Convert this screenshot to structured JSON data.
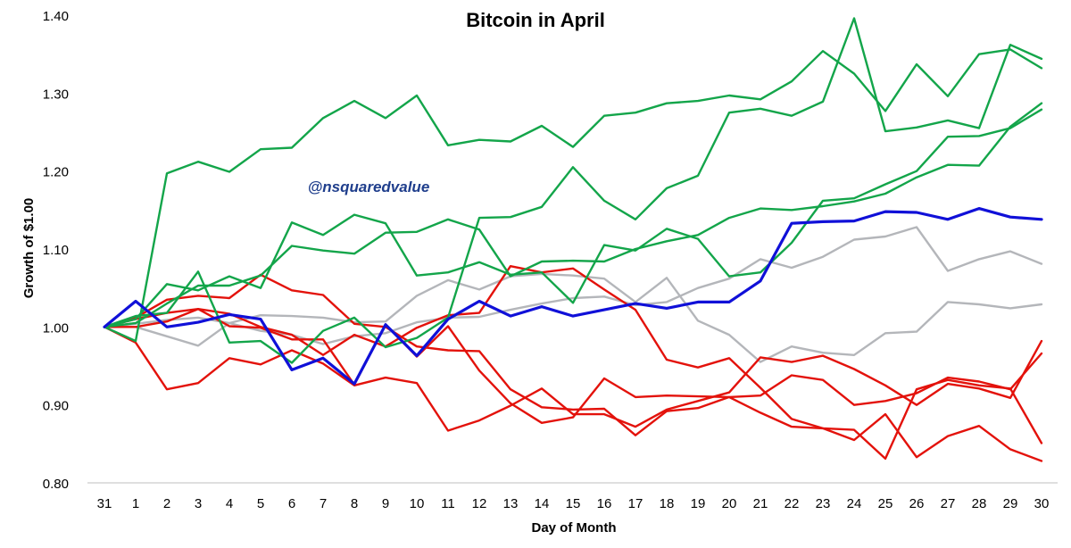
{
  "chart_data": {
    "type": "line",
    "title": "Bitcoin in April",
    "watermark": "@nsquaredvalue",
    "xlabel": "Day of Month",
    "ylabel": "Growth of $1.00",
    "x": [
      "31",
      "1",
      "2",
      "3",
      "4",
      "5",
      "6",
      "7",
      "8",
      "9",
      "10",
      "11",
      "12",
      "13",
      "14",
      "15",
      "16",
      "17",
      "18",
      "19",
      "20",
      "21",
      "22",
      "23",
      "24",
      "25",
      "26",
      "27",
      "28",
      "29",
      "30"
    ],
    "ylim": [
      0.8,
      1.4
    ],
    "yticks": [
      "0.80",
      "0.90",
      "1.00",
      "1.10",
      "1.20",
      "1.30",
      "1.40"
    ],
    "grid": false,
    "legend": "none",
    "colors": {
      "up": "#13a54a",
      "down": "#e3120b",
      "flat": "#b4b6ba",
      "current": "#1010d8"
    },
    "series": [
      {
        "group": "up",
        "values": [
          1.0,
          0.982,
          1.197,
          1.212,
          1.199,
          1.228,
          1.23,
          1.268,
          1.29,
          1.268,
          1.297,
          1.233,
          1.24,
          1.238,
          1.258,
          1.231,
          1.271,
          1.275,
          1.287,
          1.29,
          1.297,
          1.292,
          1.315,
          1.354,
          1.325,
          1.277,
          1.337,
          1.296,
          1.35,
          1.356,
          1.332
        ]
      },
      {
        "group": "up",
        "values": [
          1.0,
          1.01,
          1.055,
          1.047,
          1.065,
          1.05,
          1.134,
          1.118,
          1.144,
          1.133,
          1.066,
          1.07,
          1.083,
          1.067,
          1.07,
          1.031,
          1.105,
          1.098,
          1.126,
          1.113,
          1.065,
          1.07,
          1.108,
          1.162,
          1.165,
          1.183,
          1.2,
          1.244,
          1.245,
          1.255,
          1.279
        ]
      },
      {
        "group": "up",
        "values": [
          1.0,
          1.014,
          1.018,
          1.071,
          0.98,
          0.982,
          0.954,
          0.995,
          1.012,
          0.974,
          0.986,
          1.012,
          1.14,
          1.141,
          1.154,
          1.205,
          1.162,
          1.138,
          1.178,
          1.194,
          1.275,
          1.28,
          1.271,
          1.289,
          1.396,
          1.251,
          1.256,
          1.265,
          1.255,
          1.362,
          1.344
        ]
      },
      {
        "group": "up",
        "values": [
          1.0,
          1.005,
          1.03,
          1.053,
          1.053,
          1.066,
          1.104,
          1.098,
          1.094,
          1.121,
          1.122,
          1.138,
          1.125,
          1.065,
          1.084,
          1.085,
          1.084,
          1.1,
          1.11,
          1.118,
          1.14,
          1.152,
          1.15,
          1.155,
          1.161,
          1.171,
          1.192,
          1.208,
          1.207,
          1.257,
          1.287
        ]
      },
      {
        "group": "flat",
        "values": [
          1.0,
          1.0,
          0.988,
          0.976,
          1.005,
          1.015,
          1.014,
          1.012,
          1.006,
          1.007,
          1.04,
          1.06,
          1.048,
          1.065,
          1.068,
          1.066,
          1.062,
          1.032,
          1.063,
          1.008,
          0.99,
          0.955,
          0.975,
          0.967,
          0.964,
          0.992,
          0.994,
          1.032,
          1.029,
          1.024,
          1.029
        ]
      },
      {
        "group": "flat",
        "values": [
          1.0,
          1.004,
          1.009,
          1.012,
          1.005,
          0.995,
          0.99,
          0.978,
          0.988,
          0.992,
          1.006,
          1.012,
          1.013,
          1.022,
          1.03,
          1.037,
          1.039,
          1.028,
          1.032,
          1.05,
          1.062,
          1.087,
          1.076,
          1.09,
          1.112,
          1.116,
          1.128,
          1.072,
          1.087,
          1.097,
          1.081
        ]
      },
      {
        "group": "down",
        "values": [
          1.0,
          0.98,
          0.92,
          0.928,
          0.96,
          0.952,
          0.97,
          0.953,
          0.925,
          0.935,
          0.928,
          0.867,
          0.88,
          0.899,
          0.921,
          0.888,
          0.888,
          0.872,
          0.894,
          0.905,
          0.916,
          0.961,
          0.955,
          0.963,
          0.946,
          0.925,
          0.9,
          0.927,
          0.921,
          0.909,
          0.982
        ]
      },
      {
        "group": "down",
        "values": [
          1.0,
          1.012,
          1.035,
          1.04,
          1.037,
          1.067,
          1.047,
          1.041,
          1.004,
          1.0,
          0.975,
          0.97,
          0.969,
          0.92,
          0.897,
          0.894,
          0.895,
          0.861,
          0.892,
          0.896,
          0.91,
          0.912,
          0.938,
          0.932,
          0.9,
          0.905,
          0.915,
          0.935,
          0.93,
          0.92,
          0.966
        ]
      },
      {
        "group": "down",
        "values": [
          1.0,
          1.0,
          1.007,
          1.023,
          1.017,
          1.0,
          0.99,
          0.964,
          0.99,
          0.975,
          0.999,
          1.015,
          1.018,
          1.078,
          1.07,
          1.075,
          1.048,
          1.022,
          0.958,
          0.948,
          0.96,
          0.922,
          0.882,
          0.87,
          0.868,
          0.831,
          0.92,
          0.932,
          0.925,
          0.921,
          0.851
        ]
      },
      {
        "group": "down",
        "values": [
          1.0,
          1.01,
          1.018,
          1.023,
          1.001,
          0.999,
          0.984,
          0.984,
          0.926,
          1.003,
          0.962,
          1.001,
          0.944,
          0.902,
          0.877,
          0.884,
          0.934,
          0.91,
          0.912,
          0.911,
          0.91,
          0.89,
          0.872,
          0.87,
          0.855,
          0.888,
          0.833,
          0.86,
          0.873,
          0.843,
          0.828
        ]
      },
      {
        "group": "current",
        "values": [
          1.0,
          1.033,
          1.0,
          1.006,
          1.016,
          1.01,
          0.945,
          0.96,
          0.927,
          1.003,
          0.963,
          1.01,
          1.033,
          1.014,
          1.026,
          1.014,
          1.022,
          1.03,
          1.024,
          1.032,
          1.032,
          1.059,
          1.133,
          1.135,
          1.136,
          1.148,
          1.147,
          1.138,
          1.152,
          1.141,
          1.138
        ]
      }
    ]
  }
}
